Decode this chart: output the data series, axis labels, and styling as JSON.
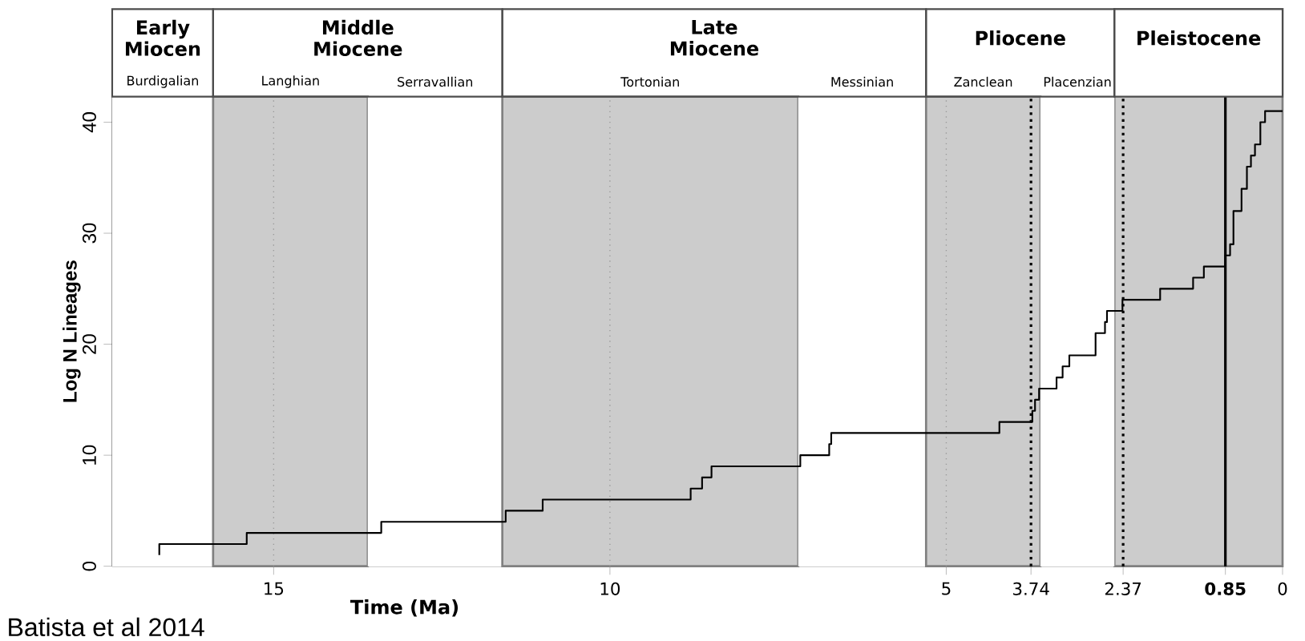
{
  "chart_data": {
    "type": "step",
    "xlabel": "Time (Ma)",
    "ylabel": "Log N Lineages",
    "color": "#000000",
    "x": [
      16.7,
      16.7,
      15.4,
      13.4,
      11.55,
      11.0,
      8.8,
      8.63,
      8.49,
      7.17,
      6.74,
      6.71,
      4.21,
      3.72,
      3.68,
      3.62,
      3.36,
      3.27,
      3.17,
      2.78,
      2.64,
      2.61,
      2.38,
      1.82,
      1.33,
      1.17,
      0.85,
      0.78,
      0.73,
      0.61,
      0.53,
      0.47,
      0.41,
      0.33,
      0.26,
      0
    ],
    "values": [
      1,
      2,
      3,
      4,
      5,
      6,
      7,
      8,
      9,
      10,
      11,
      12,
      13,
      14,
      15,
      16,
      17,
      18,
      19,
      21,
      22,
      23,
      24,
      25,
      26,
      27,
      28,
      29,
      32,
      34,
      36,
      37,
      38,
      40,
      41,
      41
    ],
    "xlim": [
      17.4,
      0
    ],
    "ylim": [
      0,
      42.3
    ],
    "xticks": [
      15,
      10,
      5,
      3.74,
      2.37,
      {
        "value": 0.85,
        "label": "**0.85**"
      },
      0
    ],
    "yticks": [
      0,
      10,
      20,
      30,
      40
    ],
    "bands": [
      {
        "axis": "x",
        "from": 17.4,
        "to": 15.9,
        "label": "Burdigalian",
        "color": "#ffffff"
      },
      {
        "axis": "x",
        "from": 15.9,
        "to": 13.6,
        "label": "Langhian",
        "color": "#cccccc"
      },
      {
        "axis": "x",
        "from": 13.6,
        "to": 11.6,
        "label": "Serravallian",
        "color": "#ffffff"
      },
      {
        "axis": "x",
        "from": 11.6,
        "to": 7.2,
        "label": "Tortonian",
        "color": "#cccccc"
      },
      {
        "axis": "x",
        "from": 7.2,
        "to": 5.3,
        "label": "Messinian",
        "color": "#ffffff"
      },
      {
        "axis": "x",
        "from": 5.3,
        "to": 3.6,
        "label": "Zanclean",
        "color": "#cccccc"
      },
      {
        "axis": "x",
        "from": 3.6,
        "to": 2.5,
        "label": "Placenzian",
        "color": "#ffffff"
      },
      {
        "axis": "x",
        "from": 17.4,
        "to": 15.9,
        "label": "Early Miocen",
        "color": "#ffffff"
      },
      {
        "axis": "x",
        "from": 15.9,
        "to": 11.6,
        "label": "Middle Miocene",
        "color": "#ffffff"
      },
      {
        "axis": "x",
        "from": 11.6,
        "to": 5.3,
        "label": "Late Miocene",
        "color": "#ffffff"
      },
      {
        "axis": "x",
        "from": 5.3,
        "to": 2.5,
        "label": "Pliocene",
        "color": "#ffffff"
      },
      {
        "axis": "x",
        "from": 2.5,
        "to": 0,
        "label": "Pleistocene",
        "color": "#cccccc"
      }
    ],
    "ref_lines": [
      {
        "axis": "x",
        "value": 15,
        "color": "#999999",
        "line_style": "dotted"
      },
      {
        "axis": "x",
        "value": 10,
        "color": "#999999",
        "line_style": "dotted"
      },
      {
        "axis": "x",
        "value": 5,
        "color": "#999999",
        "line_style": "dotted"
      },
      {
        "axis": "x",
        "value": 3.74,
        "color": "#000000",
        "line_style": "dotted"
      },
      {
        "axis": "x",
        "value": 2.37,
        "color": "#000000",
        "line_style": "dotted"
      },
      {
        "axis": "x",
        "value": 0.85,
        "color": "#000000",
        "line_style": "solid"
      }
    ],
    "annotations": [
      "Batista et al 2014"
    ]
  }
}
